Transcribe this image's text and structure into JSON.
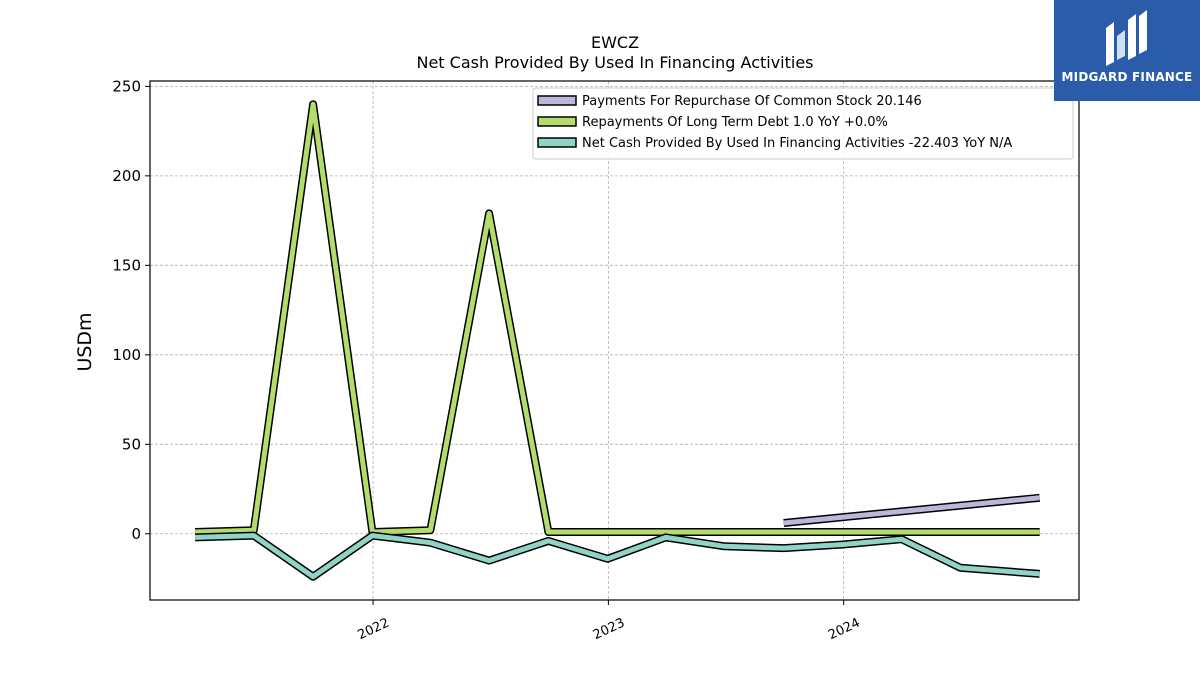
{
  "chart_data": {
    "type": "line",
    "title": "EWCZ",
    "subtitle": "Net Cash Provided By Used In Financing Activities",
    "ylabel": "USDm",
    "xlabel": "",
    "ylim": [
      -37,
      253
    ],
    "xlim": [
      "2021-01-20",
      "2024-12-31"
    ],
    "yticks": [
      0,
      50,
      100,
      150,
      200,
      250
    ],
    "xticks": [
      "2022",
      "2023",
      "2024"
    ],
    "grid": true,
    "legend_position": "top-right",
    "series": [
      {
        "name": "Payments For Repurchase Of Common Stock  20.146",
        "color": "#bcb6d8",
        "points": [
          [
            "2023-09-30",
            6.0
          ],
          [
            "2024-10-31",
            20.1
          ]
        ]
      },
      {
        "name": "Repayments Of Long Term Debt  1.0 YoY +0.0%",
        "color": "#b4dc6c",
        "points": [
          [
            "2021-03-31",
            1.0
          ],
          [
            "2021-06-30",
            2.0
          ],
          [
            "2021-09-30",
            240.0
          ],
          [
            "2021-12-31",
            1.0
          ],
          [
            "2022-03-31",
            2.0
          ],
          [
            "2022-06-30",
            179.0
          ],
          [
            "2022-09-30",
            1.0
          ],
          [
            "2022-12-31",
            1.0
          ],
          [
            "2023-03-31",
            1.0
          ],
          [
            "2023-06-30",
            1.0
          ],
          [
            "2023-09-30",
            1.0
          ],
          [
            "2023-12-31",
            1.0
          ],
          [
            "2024-03-31",
            1.0
          ],
          [
            "2024-06-30",
            1.0
          ],
          [
            "2024-09-30",
            1.0
          ],
          [
            "2024-10-31",
            1.0
          ]
        ]
      },
      {
        "name": "Net Cash Provided By Used In Financing Activities  -22.403 YoY N/A",
        "color": "#8fd4c4",
        "points": [
          [
            "2021-03-31",
            -2.0
          ],
          [
            "2021-06-30",
            -1.0
          ],
          [
            "2021-09-30",
            -24.0
          ],
          [
            "2021-12-31",
            -1.0
          ],
          [
            "2022-03-31",
            -5.0
          ],
          [
            "2022-06-30",
            -15.0
          ],
          [
            "2022-09-30",
            -4.0
          ],
          [
            "2022-12-31",
            -14.0
          ],
          [
            "2023-03-31",
            -2.0
          ],
          [
            "2023-06-30",
            -7.0
          ],
          [
            "2023-09-30",
            -8.0
          ],
          [
            "2023-12-31",
            -6.0
          ],
          [
            "2024-03-31",
            -3.0
          ],
          [
            "2024-06-30",
            -19.0
          ],
          [
            "2024-10-31",
            -22.4
          ]
        ]
      }
    ]
  },
  "logo": {
    "text": "MIDGARD FINANCE",
    "color": "#2a5caa"
  }
}
